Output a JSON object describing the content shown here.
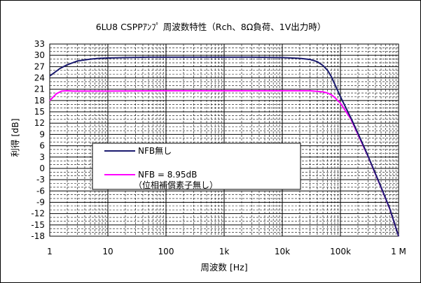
{
  "chart_data": {
    "type": "line",
    "title": "6LU8 CSPPｱﾝﾌﾟ 周波数特性（Rch、8Ω負荷、1V出力時）",
    "xlabel": "周波数 [Hz]",
    "ylabel": "利得 [dB]",
    "x_scale": "log",
    "xlim": [
      1,
      1000000
    ],
    "ylim": [
      -18,
      33
    ],
    "x_tick_values": [
      1,
      10,
      100,
      1000,
      10000,
      100000,
      1000000
    ],
    "x_tick_labels": [
      "1",
      "10",
      "100",
      "1k",
      "10k",
      "100k",
      "1 M"
    ],
    "y_tick_values": [
      33,
      30,
      27,
      24,
      21,
      18,
      15,
      12,
      9,
      6,
      3,
      0,
      -3,
      -6,
      -9,
      -12,
      -15,
      -18
    ],
    "y_tick_labels": [
      "33",
      "30",
      "27",
      "24",
      "21",
      "18",
      "15",
      "12",
      "9",
      "6",
      "3",
      "0",
      "-3",
      "-6",
      "-9",
      "-12",
      "-15",
      "-18"
    ],
    "grid": true,
    "legend_position": "center-left",
    "series": [
      {
        "name": "NFB無し",
        "color": "#1a1a6e",
        "x": [
          1,
          1.5,
          2,
          3,
          5,
          7,
          10,
          20,
          50,
          100,
          300,
          1000,
          3000,
          10000,
          20000,
          30000,
          40000,
          50000,
          60000,
          70000,
          80000,
          90000,
          100000,
          150000,
          200000,
          300000,
          500000,
          700000,
          1000000
        ],
        "y": [
          24.5,
          26.5,
          27.5,
          28.5,
          29.0,
          29.2,
          29.3,
          29.4,
          29.5,
          29.5,
          29.5,
          29.5,
          29.5,
          29.4,
          29.2,
          28.9,
          28.3,
          27.3,
          26.0,
          24.3,
          22.3,
          20.6,
          19.0,
          13.5,
          9.3,
          3.2,
          -5.0,
          -10.5,
          -18.0
        ]
      },
      {
        "name": "NFB = 8.95dB",
        "color": "#ff00ff",
        "x": [
          1,
          1.3,
          1.6,
          2,
          2.5,
          3,
          5,
          10,
          100,
          1000,
          10000,
          30000,
          50000,
          60000,
          70000,
          80000,
          90000,
          100000,
          150000,
          200000,
          300000,
          500000,
          700000,
          1000000
        ],
        "y": [
          18.0,
          19.8,
          20.5,
          20.6,
          20.5,
          20.5,
          20.5,
          20.5,
          20.6,
          20.6,
          20.6,
          20.6,
          20.3,
          20.0,
          19.5,
          18.8,
          18.0,
          17.3,
          13.2,
          9.0,
          3.1,
          -5.1,
          -10.6,
          -18.0
        ]
      }
    ],
    "legend_extra_label": "（位相補償素子無し）"
  }
}
